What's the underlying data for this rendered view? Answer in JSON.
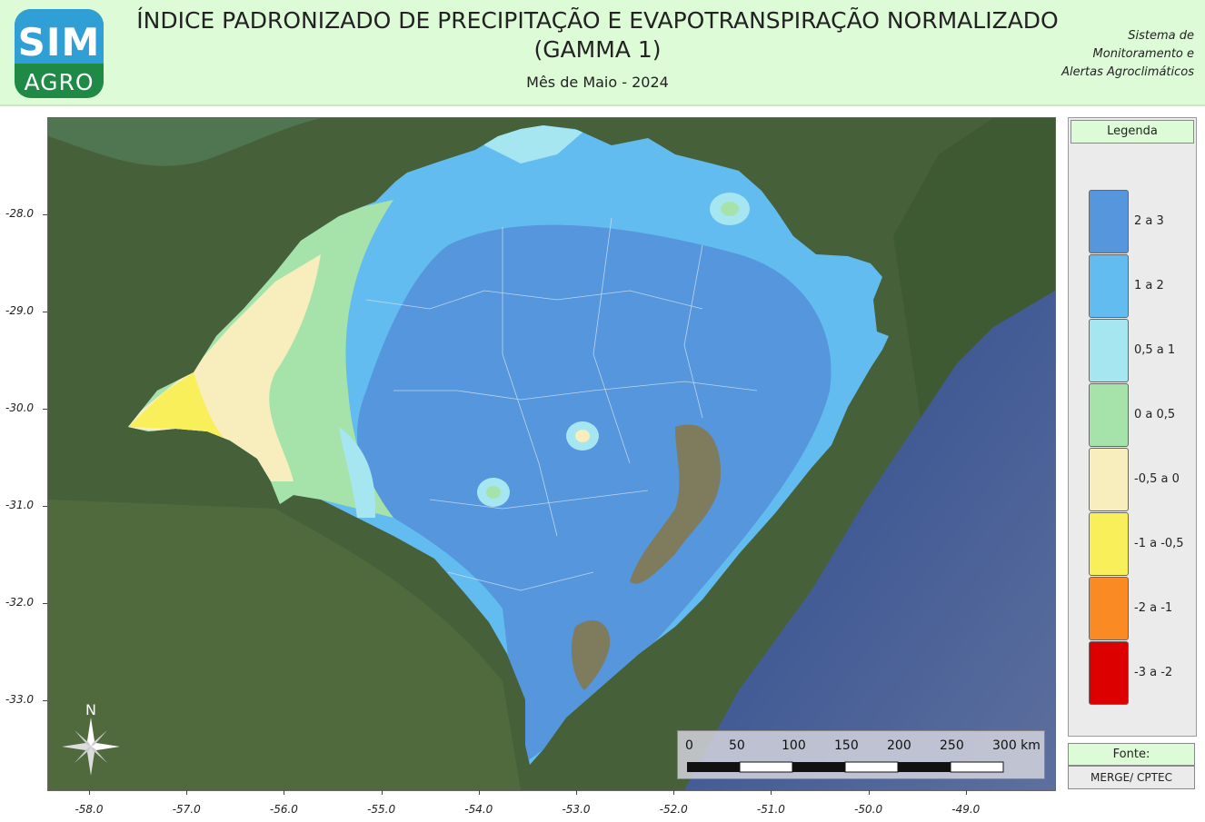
{
  "header": {
    "logo_line1": "SIM",
    "logo_line2": "AGRO",
    "title_line1": "ÍNDICE PADRONIZADO DE PRECIPITAÇÃO E EVAPOTRANSPIRAÇÃO NORMALIZADO",
    "title_line2": "(GAMMA 1)",
    "subtitle": "Mês de Maio - 2024",
    "system_line1": "Sistema de",
    "system_line2": "Monitoramento e",
    "system_line3": "Alertas Agroclimáticos"
  },
  "axes": {
    "y_labels": [
      "-28.0",
      "-29.0",
      "-30.0",
      "-31.0",
      "-32.0",
      "-33.0"
    ],
    "x_labels": [
      "-58.0",
      "-57.0",
      "-56.0",
      "-55.0",
      "-54.0",
      "-53.0",
      "-52.0",
      "-51.0",
      "-50.0",
      "-49.0"
    ]
  },
  "legend": {
    "title": "Legenda",
    "classes": [
      {
        "label": "2 a 3",
        "color": "#5596dc"
      },
      {
        "label": "1 a 2",
        "color": "#62bcef"
      },
      {
        "label": "0,5 a 1",
        "color": "#a6e6f1"
      },
      {
        "label": "0 a 0,5",
        "color": "#a6e3ab"
      },
      {
        "label": "-0,5 a 0",
        "color": "#f7edbd"
      },
      {
        "label": "-1 a -0,5",
        "color": "#f9ef5a"
      },
      {
        "label": "-2 a -1",
        "color": "#fa8a23"
      },
      {
        "label": "-3 a -2",
        "color": "#dd0000"
      }
    ]
  },
  "source": {
    "label": "Fonte:",
    "value": "MERGE/ CPTEC"
  },
  "scale": {
    "labels": [
      "0",
      "50",
      "100",
      "150",
      "200",
      "250",
      "300 km"
    ]
  },
  "north_label": "N"
}
